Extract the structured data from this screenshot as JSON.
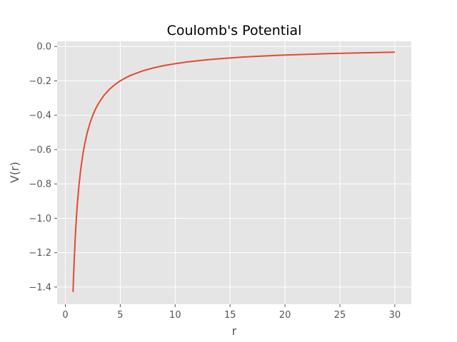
{
  "chart_data": {
    "type": "line",
    "title": "Coulomb's Potential",
    "xlabel": "r",
    "ylabel": "V(r)",
    "function": "V(r) = -1/r",
    "xlim": [
      -0.75,
      31.5
    ],
    "ylim": [
      -1.5,
      0.03
    ],
    "x_ticks": [
      0,
      5,
      10,
      15,
      20,
      25,
      30
    ],
    "x_tick_labels": [
      "0",
      "5",
      "10",
      "15",
      "20",
      "25",
      "30"
    ],
    "y_ticks": [
      0.0,
      -0.2,
      -0.4,
      -0.6,
      -0.8,
      -1.0,
      -1.2,
      -1.4
    ],
    "y_tick_labels": [
      "0.0",
      "−0.2",
      "−0.4",
      "−0.6",
      "−0.8",
      "−1.0",
      "−1.2",
      "−1.4"
    ],
    "grid": true,
    "series": [
      {
        "color": "#e24a33",
        "x": [
          0.7,
          0.75,
          0.8,
          0.9,
          1.0,
          1.1,
          1.25,
          1.4,
          1.6,
          1.8,
          2.0,
          2.25,
          2.5,
          2.75,
          3.0,
          3.5,
          4.0,
          4.5,
          5.0,
          5.5,
          6.0,
          7.0,
          8.0,
          9.0,
          10.0,
          11.0,
          12.0,
          13.0,
          14.0,
          15.0,
          16.0,
          17.0,
          18.0,
          19.0,
          20.0,
          21.0,
          22.0,
          23.0,
          24.0,
          25.0,
          26.0,
          27.0,
          28.0,
          29.0,
          30.0
        ],
        "y": [
          -1.4286,
          -1.3333,
          -1.25,
          -1.1111,
          -1.0,
          -0.9091,
          -0.8,
          -0.7143,
          -0.625,
          -0.5556,
          -0.5,
          -0.4444,
          -0.4,
          -0.3636,
          -0.3333,
          -0.2857,
          -0.25,
          -0.2222,
          -0.2,
          -0.1818,
          -0.1667,
          -0.1429,
          -0.125,
          -0.1111,
          -0.1,
          -0.0909,
          -0.0833,
          -0.0769,
          -0.0714,
          -0.0667,
          -0.0625,
          -0.0588,
          -0.0556,
          -0.0526,
          -0.05,
          -0.0476,
          -0.0455,
          -0.0435,
          -0.0417,
          -0.04,
          -0.0385,
          -0.037,
          -0.0357,
          -0.0345,
          -0.0333
        ]
      }
    ]
  },
  "style": {
    "plot_background": "#e5e5e5",
    "grid_color": "#ffffff",
    "tick_color": "#555555"
  }
}
